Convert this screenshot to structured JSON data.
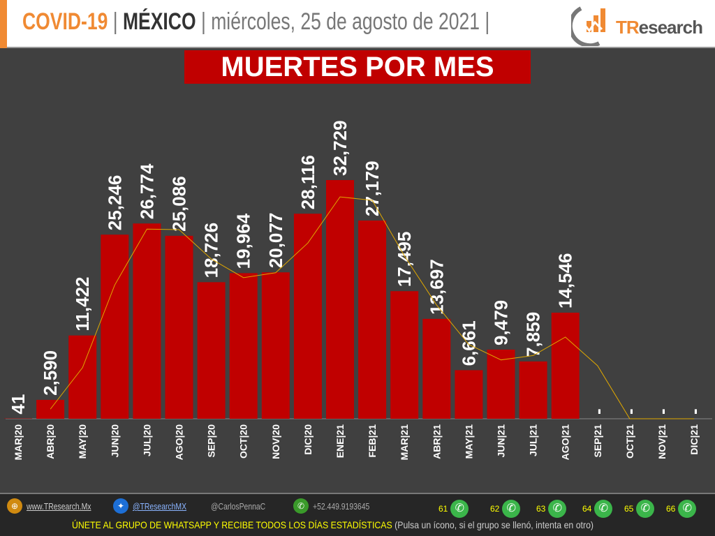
{
  "header": {
    "covid": "COVID-19",
    "sep1": " | ",
    "country": "MÉXICO",
    "sep2": " | ",
    "date": "miércoles, 25 de agosto de 2021",
    "sep3": " |",
    "logo_text": "TResearch"
  },
  "chart_data": {
    "type": "bar",
    "title": "MUERTES POR MES",
    "categories": [
      "MAR|20",
      "ABR|20",
      "MAY|20",
      "JUN|20",
      "JUL|20",
      "AGO|20",
      "SEP|20",
      "OCT|20",
      "NOV|20",
      "DIC|20",
      "ENE|21",
      "FEB|21",
      "MAR|21",
      "ABR|21",
      "MAY|21",
      "JUN|21",
      "JUL|21",
      "AGO|21",
      "SEP|21",
      "OCT|21",
      "NOV|21",
      "DIC|21"
    ],
    "values": [
      41,
      2590,
      11422,
      25246,
      26774,
      25086,
      18726,
      19964,
      20077,
      28116,
      32729,
      27179,
      17495,
      13697,
      6661,
      9479,
      7859,
      14546,
      0,
      0,
      0,
      0
    ],
    "data_labels": [
      "41",
      "2,590",
      "11,422",
      "25,246",
      "26,774",
      "25,086",
      "18,726",
      "19,964",
      "20,077",
      "28,116",
      "32,729",
      "27,179",
      "17,495",
      "13,697",
      "6,661",
      "9,479",
      "7,859",
      "14,546",
      "-",
      "-",
      "-",
      "-"
    ],
    "trendline": {
      "type": "2-period moving average",
      "values": [
        null,
        1315.5,
        7006,
        18334,
        26010,
        25930,
        21906,
        19345,
        20020.5,
        24096.5,
        30422.5,
        29954,
        22337,
        15596,
        10179,
        8070,
        8669,
        11202.5,
        7273,
        0,
        0,
        0
      ]
    },
    "colors": {
      "bar": "#c00000",
      "trendline": "#e0a800",
      "background": "#404040"
    },
    "ylim": [
      0,
      35000
    ],
    "grid": false
  },
  "footer": {
    "web": "www.TResearch.Mx",
    "twitter": "@TResearchMX",
    "user": "@CarlosPennaC",
    "phone": "+52.449.9193645",
    "groups": [
      "61",
      "62",
      "63",
      "64",
      "65",
      "66"
    ],
    "cta": "ÚNETE AL GRUPO DE WHATSAPP Y RECIBE TODOS LOS DÍAS ESTADÍSTICAS",
    "cta_note": " (Pulsa un ícono, si el grupo se llenó, intenta en otro)"
  }
}
